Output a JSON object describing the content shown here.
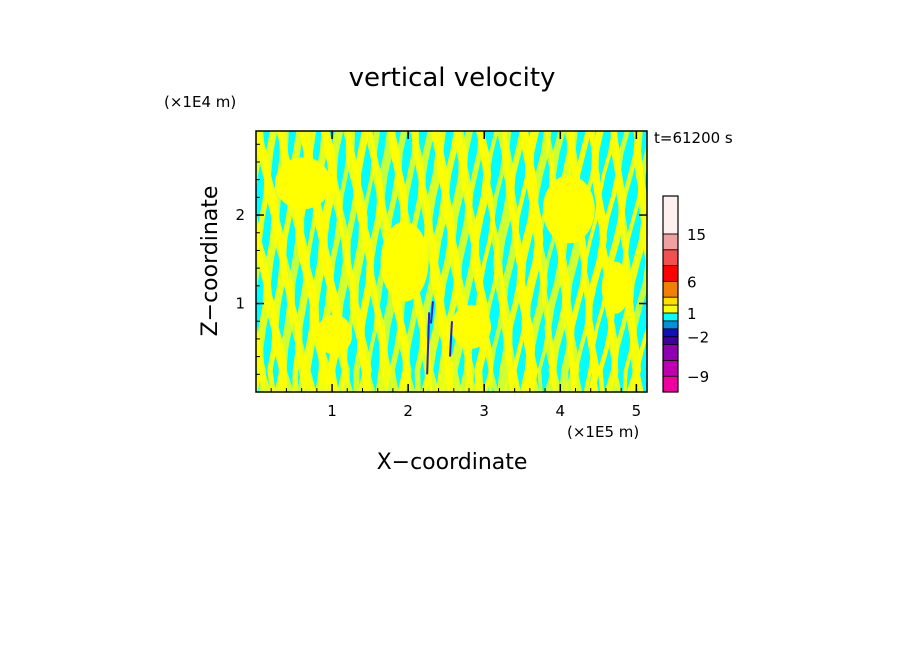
{
  "chart_data": {
    "type": "heatmap",
    "title": "vertical velocity",
    "xlabel": "X−coordinate",
    "ylabel": "Z−coordinate",
    "x_unit": "(×1E5 m)",
    "y_unit": "(×1E4 m)",
    "time_label": "t=61200 s",
    "xlim": [
      0,
      5.14
    ],
    "ylim": [
      0,
      2.95
    ],
    "x_ticks": [
      1,
      2,
      3,
      4,
      5
    ],
    "y_ticks": [
      1,
      2
    ],
    "x_tick_labels": [
      "1",
      "2",
      "3",
      "4",
      "5"
    ],
    "y_tick_labels": [
      "1",
      "2"
    ],
    "colorbar": {
      "levels": [
        -12,
        -9,
        -6,
        -4,
        -2,
        -1,
        0,
        1,
        2,
        4,
        6,
        9,
        12,
        15,
        20
      ],
      "colors": [
        "#f000a0",
        "#c000b0",
        "#9000b0",
        "#4000a0",
        "#1010c0",
        "#0090e0",
        "#00ffff",
        "#ffff00",
        "#ffe000",
        "#f08000",
        "#ff0000",
        "#f05050",
        "#f0a0a0",
        "#fff0f0"
      ],
      "tick_values": [
        15,
        6,
        1,
        -2,
        -9
      ],
      "tick_labels": [
        "15",
        "6",
        "1",
        "−2",
        "−9"
      ]
    },
    "field_colors": {
      "positive": "#ffff00",
      "negative": "#00ffff",
      "strong_negative": "#3020c0",
      "strong_positive": "#ff4000"
    }
  }
}
